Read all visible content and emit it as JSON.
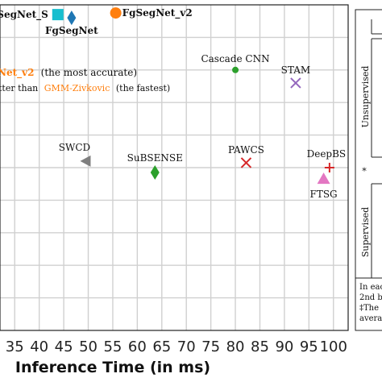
{
  "chart_data": {
    "type": "scatter",
    "xlabel": "Inference Time (in ms)",
    "x_ticks": [
      35,
      40,
      45,
      50,
      55,
      60,
      65,
      70,
      75,
      80,
      85,
      90,
      95,
      100
    ],
    "xlim": [
      32,
      103
    ],
    "ylim": [
      0,
      1
    ],
    "grid": true,
    "points": [
      {
        "label": "FgSegNet_S",
        "x": 43.8,
        "y": 0.97,
        "marker": "square",
        "color": "#17becf"
      },
      {
        "label": "FgSegNet",
        "x": 46.6,
        "y": 0.96,
        "marker": "diamond",
        "color": "#1f77b4"
      },
      {
        "label": "FgSegNet_v2",
        "x": 55.6,
        "y": 0.975,
        "marker": "circle",
        "color": "#ff7f0e"
      },
      {
        "label": "Cascade CNN",
        "x": 80.0,
        "y": 0.8,
        "marker": "dot",
        "color": "#2ca02c"
      },
      {
        "label": "STAM",
        "x": 92.3,
        "y": 0.76,
        "marker": "x",
        "color": "#9467bd"
      },
      {
        "label": "SWCD",
        "x": 49.5,
        "y": 0.52,
        "marker": "triangle-left",
        "color": "#7f7f7f"
      },
      {
        "label": "SuBSENSE",
        "x": 63.6,
        "y": 0.485,
        "marker": "diamond",
        "color": "#2ca02c"
      },
      {
        "label": "PAWCS",
        "x": 82.2,
        "y": 0.515,
        "marker": "x",
        "color": "#d62728"
      },
      {
        "label": "DeepBS",
        "x": 99.2,
        "y": 0.5,
        "marker": "plus",
        "color": "#d62728"
      },
      {
        "label": "FTSG",
        "x": 98.0,
        "y": 0.465,
        "marker": "triangle-up",
        "color": "#e377c2"
      }
    ],
    "annotations": {
      "accurate_name": "Net_v2",
      "accurate_text": "(the most accurate)",
      "fastest_prefix": "tter than",
      "fastest_name": "GMM-Zivkovic",
      "fastest_text": "(the fastest)",
      "accurate_color": "#ff7f0e",
      "fastest_color": "#ff7f0e"
    },
    "side_legend": {
      "unsupervised": "Unsupervised",
      "star": "*",
      "supervised": "Supervised",
      "footnote_lines": [
        "In eac",
        "2nd b",
        "‡The",
        "averag"
      ]
    }
  }
}
